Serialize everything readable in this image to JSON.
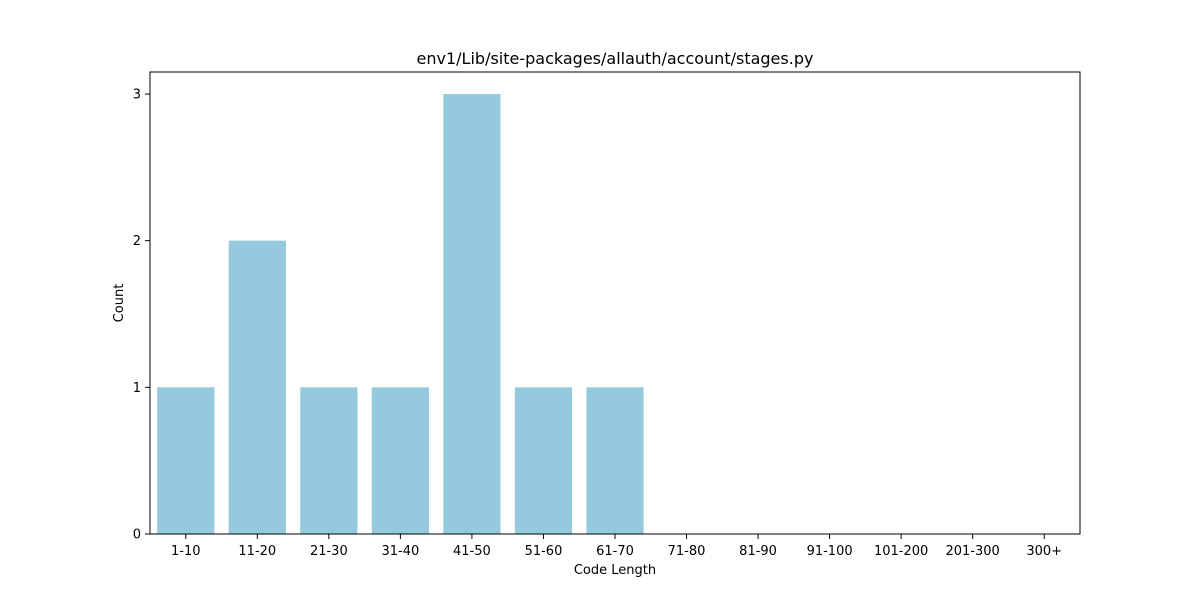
{
  "chart_data": {
    "type": "bar",
    "title": "env1/Lib/site-packages/allauth/account/stages.py",
    "xlabel": "Code Length",
    "ylabel": "Count",
    "categories": [
      "1-10",
      "11-20",
      "21-30",
      "31-40",
      "41-50",
      "51-60",
      "61-70",
      "71-80",
      "81-90",
      "91-100",
      "101-200",
      "201-300",
      "300+"
    ],
    "values": [
      1,
      2,
      1,
      1,
      3,
      1,
      1,
      0,
      0,
      0,
      0,
      0,
      0
    ],
    "yticks": [
      "0",
      "1",
      "2",
      "3"
    ],
    "ylim": [
      0,
      3.15
    ],
    "grid": false,
    "legend": "none",
    "bar_color": "#95c9de"
  }
}
